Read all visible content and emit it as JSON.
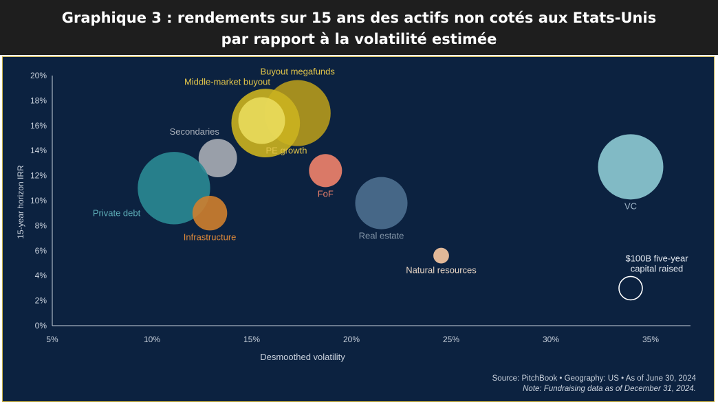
{
  "header": {
    "title_line1": "Graphique 3 : rendements sur 15 ans des actifs non cotés aux Etats-Unis",
    "title_line2": "par rapport à la volatilité estimée"
  },
  "footer": {
    "source": "Source: PitchBook • Geography: US • As of June 30, 2024",
    "note": "Note: Fundraising data as of December 31, 2024."
  },
  "chart_data": {
    "type": "scatter",
    "title": "Graphique 3 : rendements sur 15 ans des actifs non cotés aux Etats-Unis par rapport à la volatilité estimée",
    "xlabel": "Desmoothed volatility",
    "ylabel": "15-year horizon IRR",
    "xlim": [
      5,
      37
    ],
    "ylim": [
      0,
      20
    ],
    "x_ticks": [
      5,
      10,
      15,
      20,
      25,
      30,
      35
    ],
    "x_tick_labels": [
      "5%",
      "10%",
      "15%",
      "20%",
      "25%",
      "30%",
      "35%"
    ],
    "y_ticks": [
      0,
      2,
      4,
      6,
      8,
      10,
      12,
      14,
      16,
      18,
      20
    ],
    "y_tick_labels": [
      "0%",
      "2%",
      "4%",
      "6%",
      "8%",
      "10%",
      "12%",
      "14%",
      "16%",
      "18%",
      "20%"
    ],
    "grid": false,
    "size_unit": "Five-year capital raised ($B)",
    "points": [
      {
        "label": "Buyout megafunds",
        "x": 17.3,
        "y": 17.0,
        "size_billion": 800,
        "color": "#b59a1c",
        "label_color": "#e1c44a",
        "label_anchor": "above"
      },
      {
        "label": "Middle-market buyout",
        "x": 15.7,
        "y": 16.2,
        "size_billion": 860,
        "color": "#cbb21f",
        "label_color": "#e1c44a",
        "label_anchor": "upper-left"
      },
      {
        "label": "PE growth",
        "x": 15.5,
        "y": 16.4,
        "size_billion": 400,
        "color": "#e9dc5c",
        "label_color": "#e1c44a",
        "label_anchor": "below-right"
      },
      {
        "label": "Secondaries",
        "x": 13.3,
        "y": 13.4,
        "size_billion": 270,
        "color": "#a8adb5",
        "label_color": "#a9b0ba",
        "label_anchor": "upper-left"
      },
      {
        "label": "Private debt",
        "x": 11.1,
        "y": 11.0,
        "size_billion": 960,
        "color": "#2a8a93",
        "label_color": "#5fb0ba",
        "label_anchor": "lower-left"
      },
      {
        "label": "Infrastructure",
        "x": 12.9,
        "y": 9.0,
        "size_billion": 220,
        "color": "#cf7f2d",
        "label_color": "#e08a3a",
        "label_anchor": "below"
      },
      {
        "label": "FoF",
        "x": 18.7,
        "y": 12.4,
        "size_billion": 200,
        "color": "#f1836c",
        "label_color": "#f1836c",
        "label_anchor": "below"
      },
      {
        "label": "Real estate",
        "x": 21.5,
        "y": 9.8,
        "size_billion": 500,
        "color": "#4d6f8f",
        "label_color": "#8799ab",
        "label_anchor": "below"
      },
      {
        "label": "Natural resources",
        "x": 24.5,
        "y": 5.6,
        "size_billion": 45,
        "color": "#f8c9a2",
        "label_color": "#e7d5c4",
        "label_anchor": "below"
      },
      {
        "label": "VC",
        "x": 34.0,
        "y": 12.7,
        "size_billion": 780,
        "color": "#8ecbd4",
        "label_color": "#9fb5c8",
        "label_anchor": "below"
      },
      {
        "label": "$100B five-year capital raised",
        "label_lines": [
          "$100B five-year",
          "capital raised"
        ],
        "x": 34.0,
        "y": 3.0,
        "size_billion": 100,
        "color": "none",
        "stroke": "#ffffff",
        "label_color": "#e6ebf2",
        "label_anchor": "upper-right"
      }
    ]
  },
  "colors": {
    "header_bg": "#1e1e1e",
    "panel_bg": "#0c2240",
    "panel_border": "#c9b24a",
    "axis": "#c9d1dc",
    "tick_text": "#c9d1dc"
  }
}
